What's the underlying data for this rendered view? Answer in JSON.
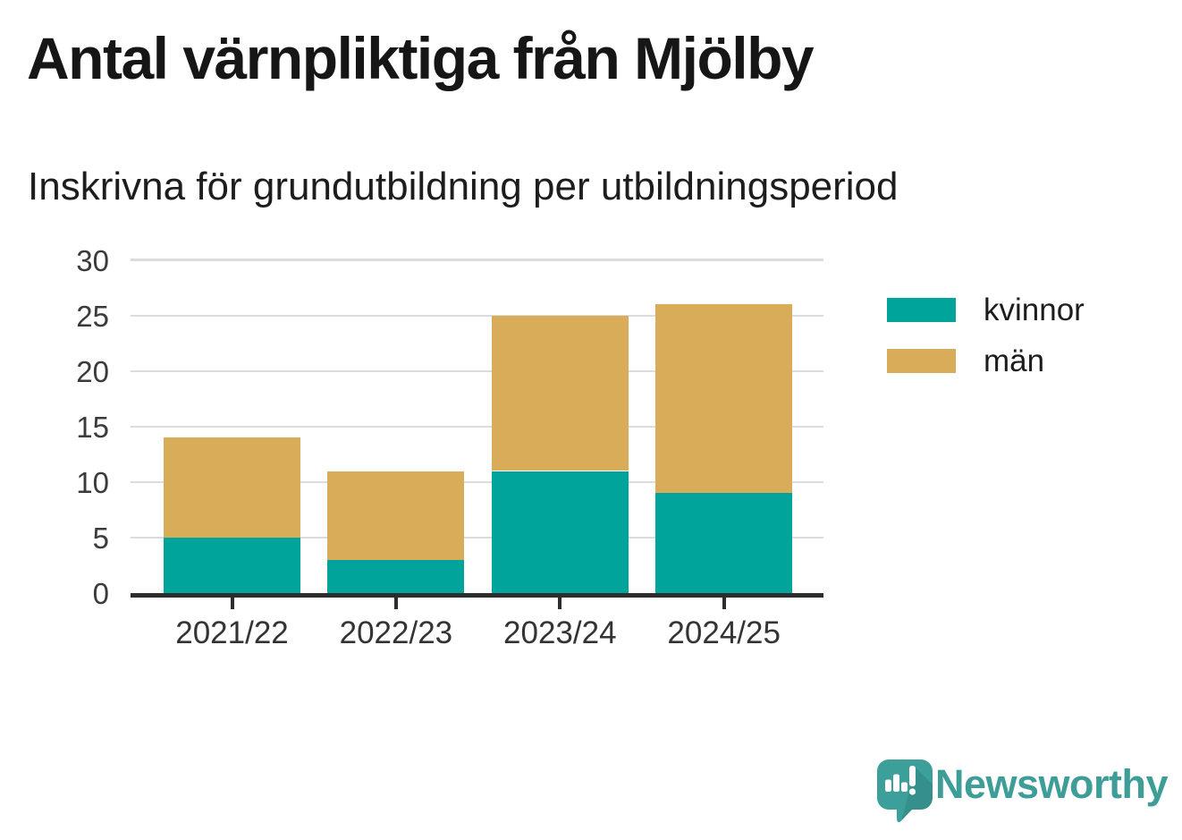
{
  "header": {
    "title": "Antal värnpliktiga från Mjölby",
    "subtitle": "Inskrivna för grundutbildning per utbildningsperiod"
  },
  "chart_data": {
    "type": "bar",
    "stacked": true,
    "title": "Antal värnpliktiga från Mjölby",
    "subtitle": "Inskrivna för grundutbildning per utbildningsperiod",
    "categories": [
      "2021/22",
      "2022/23",
      "2023/24",
      "2024/25"
    ],
    "series": [
      {
        "name": "kvinnor",
        "color": "#00a49b",
        "values": [
          5,
          3,
          11,
          9
        ]
      },
      {
        "name": "män",
        "color": "#d9ac59",
        "values": [
          9,
          8,
          14,
          17
        ]
      }
    ],
    "stack_totals": [
      14,
      11,
      25,
      26
    ],
    "xlabel": "",
    "ylabel": "",
    "ylim": [
      0,
      30
    ],
    "yticks": [
      0,
      5,
      10,
      15,
      20,
      25,
      30
    ],
    "grid": true,
    "legend_position": "right-top"
  },
  "footer": {
    "brand": "Newsworthy"
  },
  "colors": {
    "accent_teal": "#00a49b",
    "accent_gold": "#d9ac59",
    "brand_teal": "#3e9d97",
    "gridline": "#dcdcdc",
    "axis": "#2d2d2d",
    "title_text": "#161616",
    "axis_text": "#3a3a3a"
  }
}
